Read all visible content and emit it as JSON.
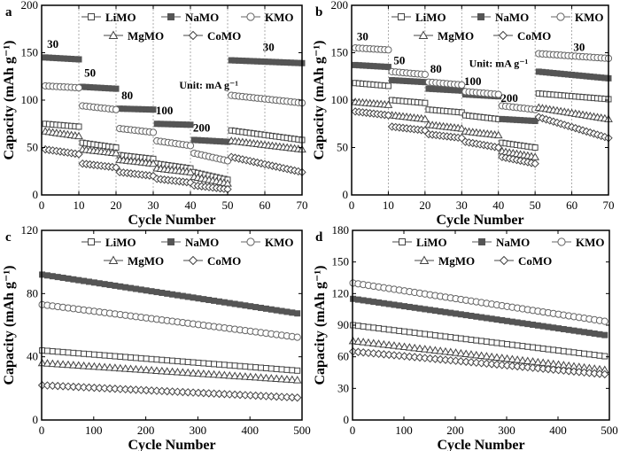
{
  "figure": {
    "series_styles": [
      {
        "name": "LiMO",
        "color": "#444444",
        "marker": "square",
        "filled": false
      },
      {
        "name": "NaMO",
        "color": "#555555",
        "marker": "square",
        "filled": true
      },
      {
        "name": "KMO",
        "color": "#666666",
        "marker": "circle",
        "filled": false
      },
      {
        "name": "MgMO",
        "color": "#444444",
        "marker": "triangle",
        "filled": false
      },
      {
        "name": "CoMO",
        "color": "#444444",
        "marker": "diamond",
        "filled": false
      }
    ]
  },
  "chart_data": [
    {
      "panel": "a",
      "type": "scatter",
      "xlabel": "Cycle Number",
      "ylabel": "Capacity (mAh g⁻¹)",
      "xlim": [
        0,
        70
      ],
      "ylim": [
        0,
        200
      ],
      "xticks": [
        0,
        10,
        20,
        30,
        40,
        50,
        60,
        70
      ],
      "yticks": [
        0,
        50,
        100,
        150,
        200
      ],
      "vlines": [
        10,
        20,
        30,
        40,
        50,
        60
      ],
      "legend_row1": [
        "LiMO",
        "NaMO",
        "KMO"
      ],
      "legend_row2": [
        "MgMO",
        "CoMO"
      ],
      "rate_labels": [
        {
          "text": "30",
          "x": 3,
          "y": 155
        },
        {
          "text": "50",
          "x": 13,
          "y": 125
        },
        {
          "text": "80",
          "x": 23,
          "y": 101
        },
        {
          "text": "100",
          "x": 33,
          "y": 85
        },
        {
          "text": "200",
          "x": 43,
          "y": 67
        },
        {
          "text": "30",
          "x": 61,
          "y": 152
        }
      ],
      "unit_text": "Unit: mA g⁻¹",
      "unit_pos": {
        "x": 37,
        "y": 112
      },
      "x_cycles": [
        1,
        70
      ],
      "series": [
        {
          "name": "LiMO",
          "segments": [
            [
              1,
              10,
              75,
              72
            ],
            [
              11,
              20,
              55,
              50
            ],
            [
              21,
              30,
              42,
              38
            ],
            [
              31,
              40,
              33,
              28
            ],
            [
              41,
              50,
              24,
              16
            ],
            [
              51,
              70,
              68,
              58
            ]
          ]
        },
        {
          "name": "NaMO",
          "segments": [
            [
              1,
              10,
              145,
              143
            ],
            [
              11,
              20,
              114,
              112
            ],
            [
              21,
              30,
              91,
              90
            ],
            [
              31,
              40,
              75,
              74
            ],
            [
              41,
              50,
              58,
              56
            ],
            [
              51,
              70,
              142,
              139
            ]
          ]
        },
        {
          "name": "KMO",
          "segments": [
            [
              1,
              10,
              115,
              113
            ],
            [
              11,
              20,
              94,
              90
            ],
            [
              21,
              30,
              70,
              66
            ],
            [
              31,
              40,
              57,
              52
            ],
            [
              41,
              50,
              44,
              36
            ],
            [
              51,
              70,
              105,
              97
            ]
          ]
        },
        {
          "name": "MgMO",
          "segments": [
            [
              1,
              10,
              67,
              62
            ],
            [
              11,
              20,
              48,
              44
            ],
            [
              21,
              30,
              37,
              33
            ],
            [
              31,
              40,
              28,
              24
            ],
            [
              41,
              50,
              19,
              12
            ],
            [
              51,
              70,
              57,
              48
            ]
          ]
        },
        {
          "name": "CoMO",
          "segments": [
            [
              1,
              10,
              48,
              43
            ],
            [
              11,
              20,
              33,
              29
            ],
            [
              21,
              30,
              24,
              20
            ],
            [
              31,
              40,
              17,
              13
            ],
            [
              41,
              50,
              10,
              6
            ],
            [
              51,
              70,
              40,
              24
            ]
          ]
        }
      ]
    },
    {
      "panel": "b",
      "type": "scatter",
      "xlabel": "Cycle Number",
      "ylabel": "Capacity (mAh g⁻¹)",
      "xlim": [
        0,
        70
      ],
      "ylim": [
        0,
        200
      ],
      "xticks": [
        0,
        10,
        20,
        30,
        40,
        50,
        60,
        70
      ],
      "yticks": [
        0,
        50,
        100,
        150,
        200
      ],
      "vlines": [
        10,
        20,
        30,
        40,
        50,
        60
      ],
      "legend_row1": [
        "LiMO",
        "NaMO",
        "KMO"
      ],
      "legend_row2": [
        "MgMO",
        "CoMO"
      ],
      "rate_labels": [
        {
          "text": "30",
          "x": 3,
          "y": 163
        },
        {
          "text": "50",
          "x": 13,
          "y": 138
        },
        {
          "text": "80",
          "x": 23,
          "y": 129
        },
        {
          "text": "100",
          "x": 33,
          "y": 116
        },
        {
          "text": "200",
          "x": 43,
          "y": 98
        },
        {
          "text": "30",
          "x": 62,
          "y": 152
        }
      ],
      "unit_text": "Unit: mA g⁻¹",
      "unit_pos": {
        "x": 32,
        "y": 135
      },
      "x_cycles": [
        1,
        70
      ],
      "series": [
        {
          "name": "LiMO",
          "segments": [
            [
              1,
              10,
              118,
              115
            ],
            [
              11,
              20,
              100,
              97
            ],
            [
              21,
              30,
              90,
              87
            ],
            [
              31,
              40,
              84,
              80
            ],
            [
              41,
              50,
              55,
              50
            ],
            [
              51,
              70,
              107,
              101
            ]
          ]
        },
        {
          "name": "NaMO",
          "segments": [
            [
              1,
              10,
              137,
              135
            ],
            [
              11,
              20,
              121,
              119
            ],
            [
              21,
              30,
              112,
              110
            ],
            [
              31,
              40,
              106,
              104
            ],
            [
              41,
              50,
              80,
              78
            ],
            [
              51,
              70,
              130,
              123
            ]
          ]
        },
        {
          "name": "KMO",
          "segments": [
            [
              1,
              10,
              155,
              153
            ],
            [
              11,
              20,
              130,
              127
            ],
            [
              21,
              30,
              119,
              116
            ],
            [
              31,
              40,
              109,
              106
            ],
            [
              41,
              50,
              94,
              90
            ],
            [
              51,
              70,
              149,
              144
            ]
          ]
        },
        {
          "name": "MgMO",
          "segments": [
            [
              1,
              10,
              98,
              95
            ],
            [
              11,
              20,
              84,
              80
            ],
            [
              21,
              30,
              74,
              70
            ],
            [
              31,
              40,
              67,
              63
            ],
            [
              41,
              50,
              46,
              40
            ],
            [
              51,
              70,
              92,
              80
            ]
          ]
        },
        {
          "name": "CoMO",
          "segments": [
            [
              1,
              10,
              88,
              84
            ],
            [
              11,
              20,
              72,
              68
            ],
            [
              21,
              30,
              64,
              60
            ],
            [
              31,
              40,
              56,
              50
            ],
            [
              41,
              50,
              40,
              33
            ],
            [
              51,
              70,
              82,
              60
            ]
          ]
        }
      ]
    },
    {
      "panel": "c",
      "type": "scatter",
      "xlabel": "Cycle Number",
      "ylabel": "Capacity (mAh g⁻¹)",
      "xlim": [
        0,
        500
      ],
      "ylim": [
        0,
        120
      ],
      "xticks": [
        0,
        100,
        200,
        300,
        400,
        500
      ],
      "yticks": [
        0,
        40,
        80,
        120
      ],
      "vlines": [],
      "legend_row1": [
        "LiMO",
        "NaMO",
        "KMO"
      ],
      "legend_row2": [
        "MgMO",
        "CoMO"
      ],
      "rate_labels": [],
      "series": [
        {
          "name": "LiMO",
          "segments": [
            [
              1,
              500,
              44,
              31
            ]
          ]
        },
        {
          "name": "NaMO",
          "segments": [
            [
              1,
              500,
              92,
              67
            ]
          ]
        },
        {
          "name": "KMO",
          "segments": [
            [
              1,
              500,
              73,
              52
            ]
          ]
        },
        {
          "name": "MgMO",
          "segments": [
            [
              1,
              500,
              36,
              25
            ]
          ]
        },
        {
          "name": "CoMO",
          "segments": [
            [
              1,
              500,
              22,
              14
            ]
          ]
        }
      ]
    },
    {
      "panel": "d",
      "type": "scatter",
      "xlabel": "Cycle Number",
      "ylabel": "Capacity (mAh g⁻¹)",
      "xlim": [
        0,
        500
      ],
      "ylim": [
        0,
        180
      ],
      "xticks": [
        0,
        100,
        200,
        300,
        400,
        500
      ],
      "yticks": [
        0,
        30,
        60,
        90,
        120,
        150,
        180
      ],
      "vlines": [],
      "legend_row1": [
        "LiMO",
        "NaMO",
        "KMO"
      ],
      "legend_row2": [
        "MgMO",
        "CoMO"
      ],
      "rate_labels": [],
      "series": [
        {
          "name": "LiMO",
          "segments": [
            [
              1,
              500,
              90,
              60
            ]
          ]
        },
        {
          "name": "NaMO",
          "segments": [
            [
              1,
              500,
              115,
              80
            ]
          ]
        },
        {
          "name": "KMO",
          "segments": [
            [
              1,
              500,
              130,
              93
            ]
          ]
        },
        {
          "name": "MgMO",
          "segments": [
            [
              1,
              500,
              75,
              47
            ]
          ]
        },
        {
          "name": "CoMO",
          "segments": [
            [
              1,
              500,
              65,
              43
            ]
          ]
        }
      ]
    }
  ]
}
